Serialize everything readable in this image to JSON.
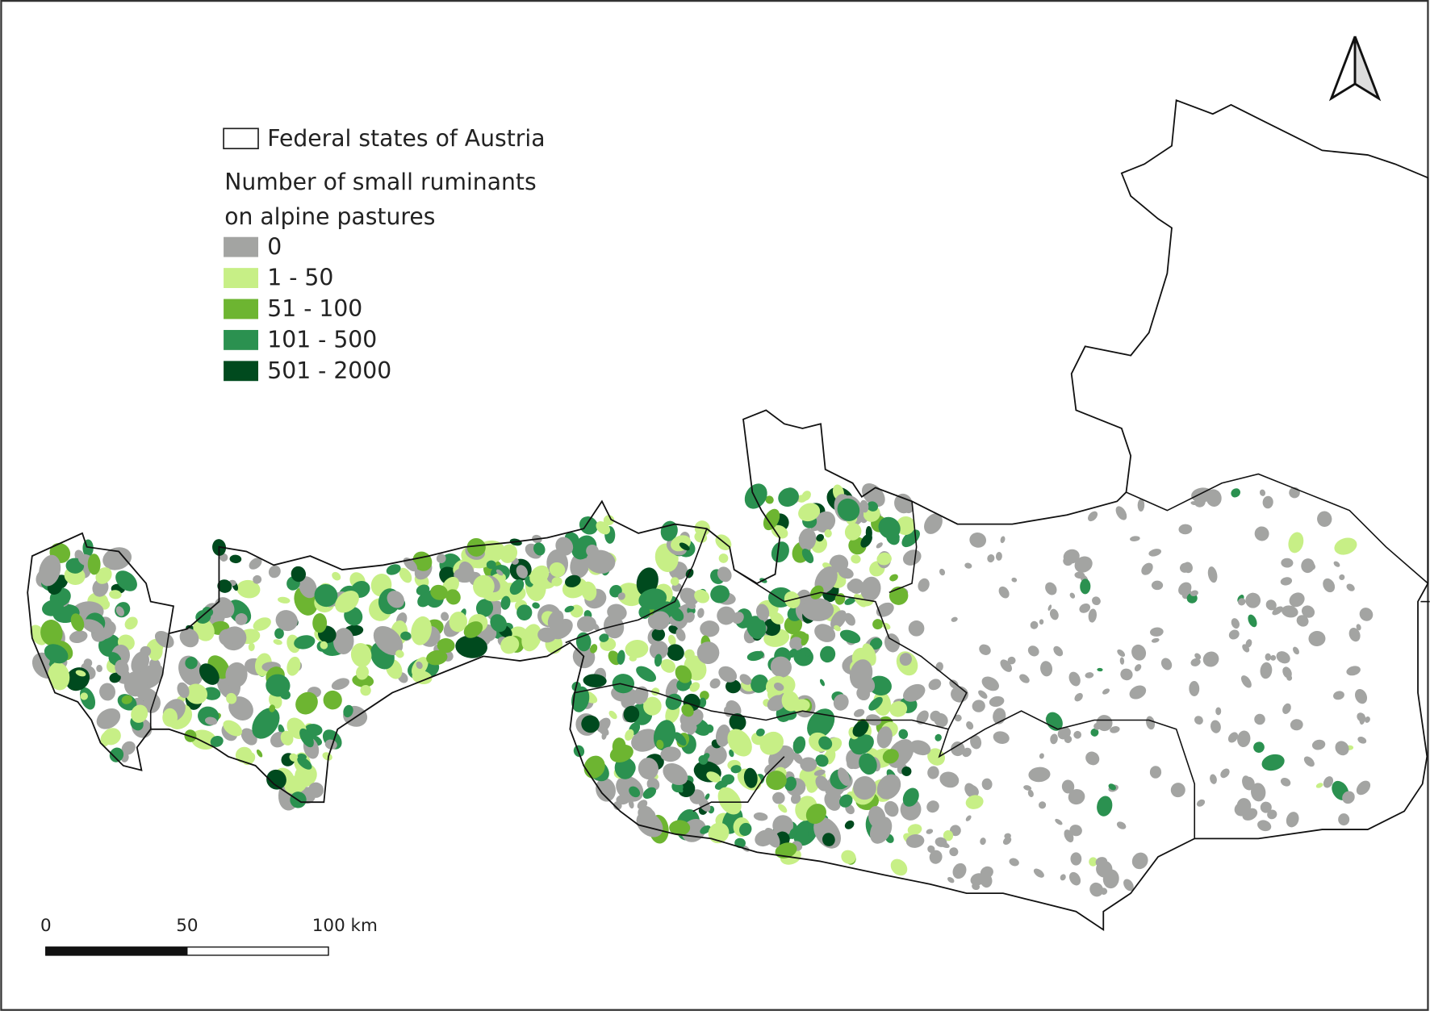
{
  "legend": {
    "boundary_label": "Federal states of Austria",
    "title_lines": [
      "Number of small ruminants",
      "on alpine pastures"
    ],
    "classes": [
      {
        "label": "0",
        "color": "#a3a4a2"
      },
      {
        "label": "1 - 50",
        "color": "#c7ef86"
      },
      {
        "label": "51 - 100",
        "color": "#6db531"
      },
      {
        "label": "101 - 500",
        "color": "#2b9150"
      },
      {
        "label": "501 - 2000",
        "color": "#004a1e"
      }
    ]
  },
  "scale_bar": {
    "ticks": [
      0,
      50,
      {
        "value": 100,
        "label": "100 km"
      }
    ]
  },
  "north_arrow": true
}
